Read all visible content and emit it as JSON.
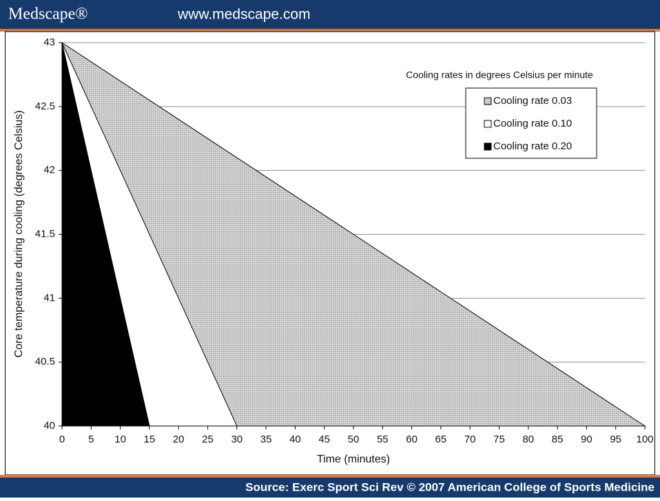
{
  "header": {
    "brand": "Medscape®",
    "url": "www.medscape.com"
  },
  "footer": {
    "source": "Source: Exerc Sport Sci Rev © 2007 American College of Sports Medicine"
  },
  "chart_data": {
    "type": "area",
    "xlabel": "Time (minutes)",
    "ylabel": "Core temperature during cooling (degrees Celsius)",
    "legend_title": "Cooling rates in  degrees Celsius per minute",
    "legend_position": "upper right",
    "grid": true,
    "xlim": [
      0,
      100
    ],
    "xticks": [
      0,
      5,
      10,
      15,
      20,
      25,
      30,
      35,
      40,
      45,
      50,
      55,
      60,
      65,
      70,
      75,
      80,
      85,
      90,
      95,
      100
    ],
    "ylim": [
      40,
      43
    ],
    "yticks": [
      40,
      40.5,
      41,
      41.5,
      42,
      42.5,
      43
    ],
    "series": [
      {
        "name": "Cooling rate 0.03",
        "color": "#c4c4c4",
        "x": [
          0,
          100
        ],
        "values": [
          43,
          40
        ]
      },
      {
        "name": "Cooling rate 0.10",
        "color": "#ffffff",
        "x": [
          0,
          30
        ],
        "values": [
          43,
          40
        ]
      },
      {
        "name": "Cooling rate 0.20",
        "color": "#000000",
        "x": [
          0,
          15
        ],
        "values": [
          43,
          40
        ]
      }
    ]
  }
}
